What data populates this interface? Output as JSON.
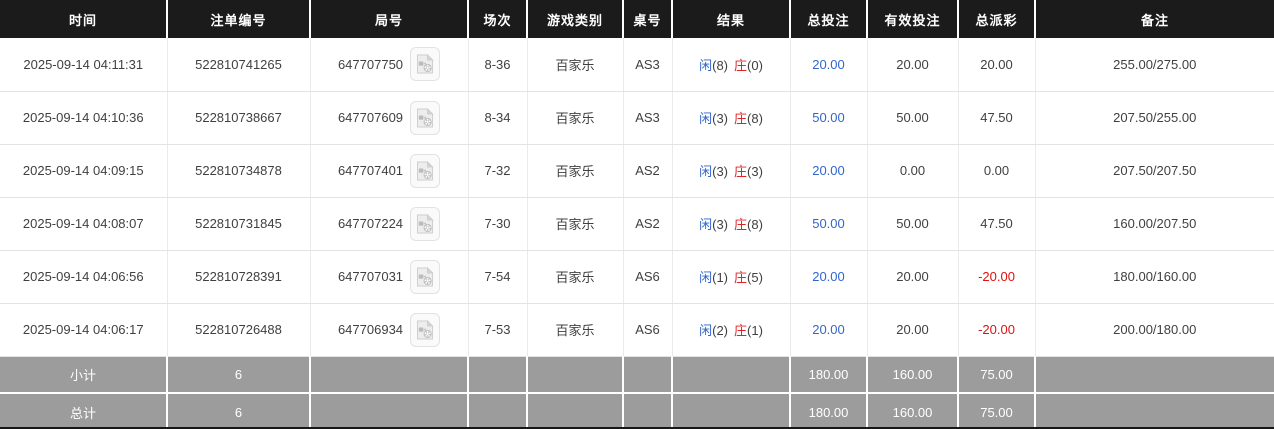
{
  "table": {
    "columns": [
      {
        "key": "time",
        "label": "时间"
      },
      {
        "key": "bet_id",
        "label": "注单编号"
      },
      {
        "key": "round_id",
        "label": "局号"
      },
      {
        "key": "session",
        "label": "场次"
      },
      {
        "key": "game_type",
        "label": "游戏类别"
      },
      {
        "key": "table_no",
        "label": "桌号"
      },
      {
        "key": "result",
        "label": "结果"
      },
      {
        "key": "total_bet",
        "label": "总投注"
      },
      {
        "key": "valid_bet",
        "label": "有效投注"
      },
      {
        "key": "total_payout",
        "label": "总派彩"
      },
      {
        "key": "remark",
        "label": "备注"
      }
    ],
    "rows": [
      {
        "time": "2025-09-14 04:11:31",
        "bet_id": "522810741265",
        "round_id": "647707750",
        "session": "8-36",
        "game_type": "百家乐",
        "table_no": "AS3",
        "result": {
          "player_label": "闲",
          "player_score": "(8)",
          "banker_label": "庄",
          "banker_score": "(0)"
        },
        "total_bet": "20.00",
        "valid_bet": "20.00",
        "total_payout": "20.00",
        "remark": "255.00/275.00"
      },
      {
        "time": "2025-09-14 04:10:36",
        "bet_id": "522810738667",
        "round_id": "647707609",
        "session": "8-34",
        "game_type": "百家乐",
        "table_no": "AS3",
        "result": {
          "player_label": "闲",
          "player_score": "(3)",
          "banker_label": "庄",
          "banker_score": "(8)"
        },
        "total_bet": "50.00",
        "valid_bet": "50.00",
        "total_payout": "47.50",
        "remark": "207.50/255.00"
      },
      {
        "time": "2025-09-14 04:09:15",
        "bet_id": "522810734878",
        "round_id": "647707401",
        "session": "7-32",
        "game_type": "百家乐",
        "table_no": "AS2",
        "result": {
          "player_label": "闲",
          "player_score": "(3)",
          "banker_label": "庄",
          "banker_score": "(3)"
        },
        "total_bet": "20.00",
        "valid_bet": "0.00",
        "total_payout": "0.00",
        "remark": "207.50/207.50"
      },
      {
        "time": "2025-09-14 04:08:07",
        "bet_id": "522810731845",
        "round_id": "647707224",
        "session": "7-30",
        "game_type": "百家乐",
        "table_no": "AS2",
        "result": {
          "player_label": "闲",
          "player_score": "(3)",
          "banker_label": "庄",
          "banker_score": "(8)"
        },
        "total_bet": "50.00",
        "valid_bet": "50.00",
        "total_payout": "47.50",
        "remark": "160.00/207.50"
      },
      {
        "time": "2025-09-14 04:06:56",
        "bet_id": "522810728391",
        "round_id": "647707031",
        "session": "7-54",
        "game_type": "百家乐",
        "table_no": "AS6",
        "result": {
          "player_label": "闲",
          "player_score": "(1)",
          "banker_label": "庄",
          "banker_score": "(5)"
        },
        "total_bet": "20.00",
        "valid_bet": "20.00",
        "total_payout": "-20.00",
        "remark": "180.00/160.00"
      },
      {
        "time": "2025-09-14 04:06:17",
        "bet_id": "522810726488",
        "round_id": "647706934",
        "session": "7-53",
        "game_type": "百家乐",
        "table_no": "AS6",
        "result": {
          "player_label": "闲",
          "player_score": "(2)",
          "banker_label": "庄",
          "banker_score": "(1)"
        },
        "total_bet": "20.00",
        "valid_bet": "20.00",
        "total_payout": "-20.00",
        "remark": "200.00/180.00"
      }
    ],
    "summary_rows": [
      {
        "label": "小计",
        "count": "6",
        "total_bet": "180.00",
        "valid_bet": "160.00",
        "total_payout": "75.00"
      },
      {
        "label": "总计",
        "count": "6",
        "total_bet": "180.00",
        "valid_bet": "160.00",
        "total_payout": "75.00"
      }
    ]
  },
  "icons": {
    "video_icon": "video-file-icon"
  },
  "colors": {
    "header_bg": "#1b1b1b",
    "summary_bg": "#9c9c9c",
    "accent_blue": "#3366cc",
    "accent_red": "#e02222",
    "negative_red": "#e01111"
  }
}
